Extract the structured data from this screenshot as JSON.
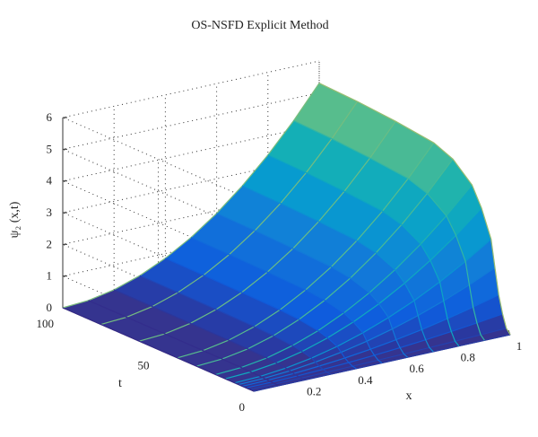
{
  "chart_data": {
    "type": "surface",
    "title": "OS-NSFD Explicit Method",
    "xlabel": "x",
    "ylabel": "t",
    "zlabel": "ψ₂ (x,t)",
    "x_ticks": [
      "0.2",
      "0.4",
      "0.6",
      "0.8",
      "1"
    ],
    "y_ticks": [
      "0",
      "50",
      "100"
    ],
    "z_ticks": [
      "0",
      "1",
      "2",
      "3",
      "4",
      "5",
      "6"
    ],
    "xlim": [
      0,
      1
    ],
    "ylim": [
      0,
      100
    ],
    "zlim": [
      0,
      6
    ],
    "grid": true,
    "colormap": "parula",
    "plateau_color": "#35348f",
    "surface": {
      "x": [
        0,
        0.1,
        0.2,
        0.3,
        0.4,
        0.5,
        0.6,
        0.7,
        0.8,
        0.9,
        1.0
      ],
      "t": [
        0,
        2,
        4,
        6,
        8,
        10,
        15,
        20,
        30,
        40,
        60,
        80,
        100
      ],
      "psi_at_x1": [
        0.0,
        0.15,
        0.55,
        1.1,
        1.9,
        2.75,
        3.6,
        4.2,
        4.75,
        5.0,
        5.15,
        5.25,
        5.3
      ],
      "description": "psi(x,t) = psi_at_x1(t) * x^2"
    }
  }
}
